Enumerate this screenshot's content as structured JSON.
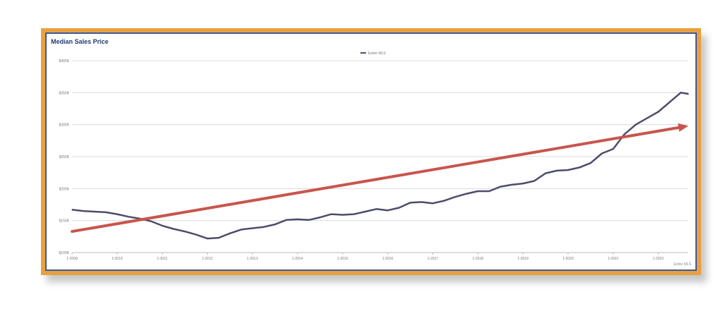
{
  "chart_data": {
    "type": "line",
    "title": "Median Sales Price",
    "source": "Entire MLS",
    "legend_position": "top-center",
    "grid": true,
    "ylim": [
      100000,
      400000
    ],
    "y_ticks": [
      {
        "value": 100000,
        "label": "$100K"
      },
      {
        "value": 150000,
        "label": "$150K"
      },
      {
        "value": 200000,
        "label": "$200K"
      },
      {
        "value": 250000,
        "label": "$250K"
      },
      {
        "value": 300000,
        "label": "$300K"
      },
      {
        "value": 350000,
        "label": "$350K"
      },
      {
        "value": 400000,
        "label": "$400K"
      }
    ],
    "x_ticks": [
      "1-2009",
      "1-2010",
      "1-2011",
      "1-2012",
      "1-2013",
      "1-2014",
      "1-2015",
      "1-2016",
      "1-2017",
      "1-2018",
      "1-2019",
      "1-2020",
      "1-2021",
      "1-2022"
    ],
    "xlim": [
      "2009-01",
      "2022-09"
    ],
    "series": [
      {
        "name": "Entire MLS",
        "color": "#4d4d6b",
        "points": [
          [
            "2009-01",
            167000
          ],
          [
            "2009-04",
            165000
          ],
          [
            "2009-07",
            164000
          ],
          [
            "2009-10",
            163000
          ],
          [
            "2010-01",
            160000
          ],
          [
            "2010-04",
            156000
          ],
          [
            "2010-07",
            153000
          ],
          [
            "2010-10",
            149000
          ],
          [
            "2011-01",
            142000
          ],
          [
            "2011-04",
            137000
          ],
          [
            "2011-07",
            133000
          ],
          [
            "2011-10",
            128000
          ],
          [
            "2012-01",
            122000
          ],
          [
            "2012-04",
            123000
          ],
          [
            "2012-07",
            130000
          ],
          [
            "2012-10",
            136000
          ],
          [
            "2013-01",
            138000
          ],
          [
            "2013-04",
            140000
          ],
          [
            "2013-07",
            144000
          ],
          [
            "2013-10",
            151000
          ],
          [
            "2014-01",
            152000
          ],
          [
            "2014-04",
            151000
          ],
          [
            "2014-07",
            155000
          ],
          [
            "2014-10",
            160000
          ],
          [
            "2015-01",
            159000
          ],
          [
            "2015-04",
            160000
          ],
          [
            "2015-07",
            164000
          ],
          [
            "2015-10",
            168000
          ],
          [
            "2016-01",
            166000
          ],
          [
            "2016-04",
            170000
          ],
          [
            "2016-07",
            178000
          ],
          [
            "2016-10",
            179000
          ],
          [
            "2017-01",
            177000
          ],
          [
            "2017-04",
            181000
          ],
          [
            "2017-07",
            187000
          ],
          [
            "2017-10",
            192000
          ],
          [
            "2018-01",
            196000
          ],
          [
            "2018-04",
            196000
          ],
          [
            "2018-07",
            203000
          ],
          [
            "2018-10",
            206000
          ],
          [
            "2019-01",
            208000
          ],
          [
            "2019-04",
            212000
          ],
          [
            "2019-07",
            224000
          ],
          [
            "2019-10",
            228000
          ],
          [
            "2020-01",
            229000
          ],
          [
            "2020-04",
            233000
          ],
          [
            "2020-07",
            240000
          ],
          [
            "2020-10",
            255000
          ],
          [
            "2021-01",
            262000
          ],
          [
            "2021-04",
            285000
          ],
          [
            "2021-07",
            300000
          ],
          [
            "2021-10",
            310000
          ],
          [
            "2022-01",
            320000
          ],
          [
            "2022-04",
            335000
          ],
          [
            "2022-07",
            350000
          ],
          [
            "2022-09",
            348000
          ]
        ]
      }
    ],
    "annotations": [
      {
        "type": "arrow",
        "color": "#c8554d",
        "from": [
          "2009-01",
          133000
        ],
        "to": [
          "2022-09",
          298000
        ]
      }
    ]
  }
}
